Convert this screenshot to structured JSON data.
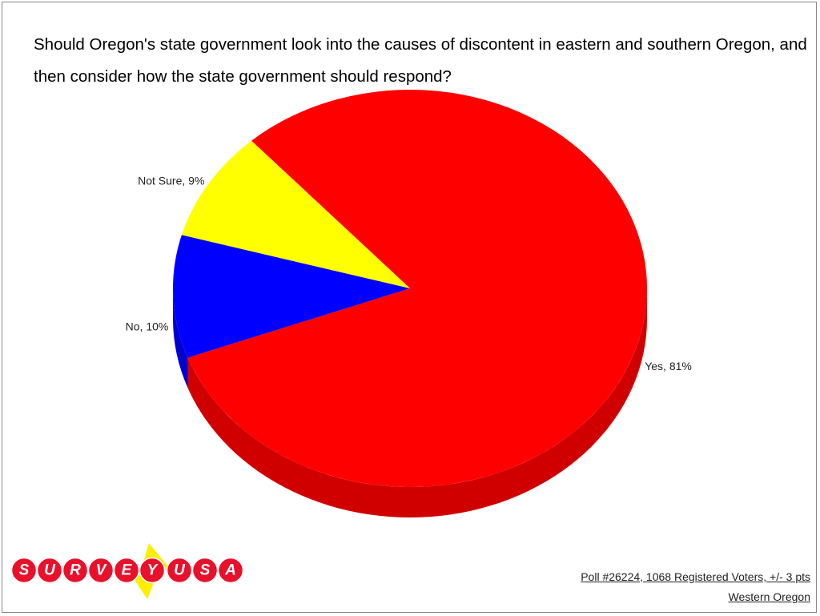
{
  "chart_data": {
    "type": "pie",
    "title": "Should Oregon's state government look into the causes of discontent in eastern and southern Oregon, and then consider how the state government should respond?",
    "values": [
      81,
      10,
      9
    ],
    "value_labels": [
      "Yes, 81%",
      "No, 10%",
      "Not Sure, 9%"
    ],
    "colors": [
      "#ff0000",
      "#0000ff",
      "#ffff00"
    ]
  },
  "logo": {
    "left": "SURVEY",
    "right": "USA"
  },
  "footer": {
    "poll": "Poll #26224, 1068 Registered Voters, +/- 3 pts",
    "region": "Western Oregon"
  }
}
